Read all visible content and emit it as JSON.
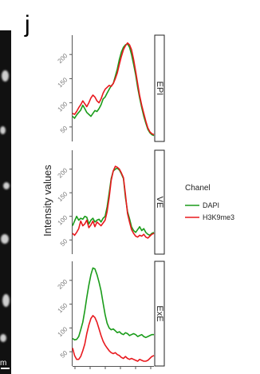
{
  "panel_letter": "j",
  "scale_label": "m",
  "chart_data": {
    "type": "line",
    "ylabel": "Intensity values",
    "xlabel": "",
    "yticks": [
      50,
      100,
      150,
      200
    ],
    "legend": {
      "title": "Chanel",
      "position": "right",
      "entries": [
        {
          "name": "DAPI",
          "color": "#1a9c1a"
        },
        {
          "name": "H3K9me3",
          "color": "#e8191e"
        }
      ]
    },
    "panels": [
      {
        "label": "EPI",
        "ylim": [
          20,
          240
        ],
        "x": [
          0,
          1,
          2,
          3,
          4,
          5,
          6,
          7,
          8,
          9,
          10,
          11,
          12,
          13,
          14,
          15,
          16,
          17,
          18,
          19,
          20,
          21,
          22,
          23,
          24,
          25,
          26,
          27,
          28,
          29,
          30,
          31,
          32,
          33,
          34,
          35,
          36,
          37,
          38,
          39,
          40
        ],
        "series": [
          {
            "name": "DAPI",
            "values": [
              72,
              68,
              75,
              80,
              85,
              95,
              88,
              80,
              76,
              72,
              78,
              84,
              82,
              88,
              96,
              108,
              112,
              120,
              128,
              135,
              140,
              155,
              170,
              190,
              205,
              215,
              220,
              222,
              215,
              200,
              180,
              158,
              132,
              110,
              90,
              72,
              58,
              45,
              38,
              34,
              32
            ]
          },
          {
            "name": "H3K9me3",
            "values": [
              78,
              76,
              82,
              90,
              96,
              104,
              98,
              92,
              100,
              110,
              116,
              112,
              104,
              100,
              108,
              120,
              128,
              132,
              136,
              134,
              140,
              150,
              162,
              180,
              196,
              210,
              218,
              224,
              220,
              210,
              190,
              165,
              140,
              115,
              95,
              78,
              62,
              48,
              40,
              36,
              34
            ]
          }
        ]
      },
      {
        "label": "VE",
        "ylim": [
          20,
          240
        ],
        "x": [
          0,
          1,
          2,
          3,
          4,
          5,
          6,
          7,
          8,
          9,
          10,
          11,
          12,
          13,
          14,
          15,
          16,
          17,
          18,
          19,
          20,
          21,
          22,
          23,
          24,
          25,
          26,
          27,
          28,
          29,
          30,
          31,
          32,
          33,
          34,
          35,
          36,
          37,
          38,
          39,
          40
        ],
        "series": [
          {
            "name": "DAPI",
            "values": [
              80,
              90,
              100,
              92,
              96,
              94,
              100,
              98,
              84,
              92,
              96,
              88,
              92,
              94,
              88,
              96,
              100,
              120,
              150,
              180,
              196,
              200,
              202,
              198,
              190,
              180,
              140,
              110,
              95,
              78,
              70,
              66,
              72,
              78,
              70,
              74,
              66,
              62,
              60,
              64,
              66
            ]
          },
          {
            "name": "H3K9me3",
            "values": [
              64,
              60,
              66,
              74,
              90,
              80,
              84,
              92,
              76,
              82,
              90,
              78,
              88,
              84,
              80,
              86,
              92,
              110,
              140,
              176,
              196,
              206,
              204,
              200,
              192,
              182,
              146,
              106,
              88,
              72,
              64,
              58,
              56,
              60,
              58,
              62,
              56,
              54,
              58,
              62,
              64
            ]
          }
        ]
      },
      {
        "label": "ExE",
        "ylim": [
          20,
          240
        ],
        "x": [
          0,
          1,
          2,
          3,
          4,
          5,
          6,
          7,
          8,
          9,
          10,
          11,
          12,
          13,
          14,
          15,
          16,
          17,
          18,
          19,
          20,
          21,
          22,
          23,
          24,
          25,
          26,
          27,
          28,
          29,
          30,
          31,
          32,
          33,
          34,
          35,
          36,
          37,
          38,
          39,
          40
        ],
        "series": [
          {
            "name": "DAPI",
            "values": [
              78,
              75,
              76,
              82,
              96,
              112,
              136,
              164,
              190,
              212,
              226,
              224,
              212,
              196,
              178,
              152,
              128,
              110,
              100,
              96,
              98,
              94,
              90,
              92,
              88,
              86,
              90,
              88,
              84,
              86,
              88,
              86,
              82,
              84,
              86,
              82,
              80,
              82,
              84,
              86,
              86
            ]
          },
          {
            "name": "H3K9me3",
            "values": [
              58,
              42,
              34,
              34,
              40,
              52,
              66,
              88,
              106,
              120,
              126,
              122,
              112,
              98,
              84,
              72,
              64,
              58,
              52,
              48,
              46,
              48,
              44,
              42,
              38,
              36,
              40,
              36,
              34,
              36,
              34,
              32,
              30,
              34,
              32,
              30,
              30,
              32,
              36,
              40,
              42
            ]
          }
        ]
      }
    ]
  }
}
